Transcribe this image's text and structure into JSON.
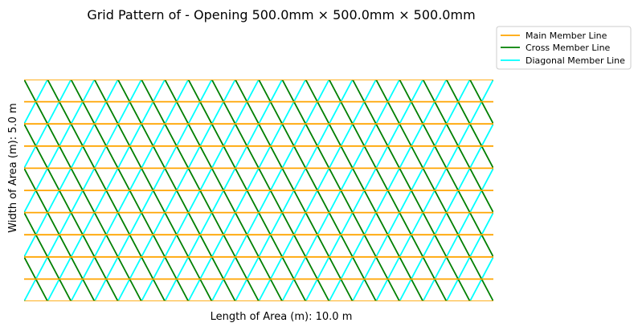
{
  "title": "Grid Pattern of - Opening 500.0mm × 500.0mm × 500.0mm",
  "xlabel": "Length of Area (m): 10.0 m",
  "ylabel": "Width of Area (m): 5.0 m",
  "legend": {
    "placement": "outside-top-right",
    "items": [
      {
        "label": "Main Member Line",
        "color": "#ffa500"
      },
      {
        "label": "Cross Member Line",
        "color": "#008000"
      },
      {
        "label": "Diagonal Member Line",
        "color": "#00ffff"
      }
    ]
  },
  "chart_data": {
    "type": "line",
    "title": "Grid Pattern of - Opening 500.0mm × 500.0mm × 500.0mm",
    "xlabel": "Length of Area (m): 10.0 m",
    "ylabel": "Width of Area (m): 5.0 m",
    "xlim": [
      0,
      10
    ],
    "ylim": [
      0,
      5
    ],
    "axes_visible": false,
    "grid": false,
    "main_member_y": [
      0,
      0.5,
      1.0,
      1.5,
      2.0,
      2.5,
      3.0,
      3.5,
      4.0,
      4.5,
      5.0
    ],
    "diagonal_pitch": 0.5,
    "diagonal_rise_per_step": 0.5,
    "series": [
      {
        "name": "Main Member Line",
        "color": "#ffa500",
        "orientation": "horizontal"
      },
      {
        "name": "Cross Member Line",
        "color": "#008000",
        "orientation": "diagonal-up"
      },
      {
        "name": "Diagonal Member Line",
        "color": "#00ffff",
        "orientation": "diagonal-down"
      }
    ]
  }
}
